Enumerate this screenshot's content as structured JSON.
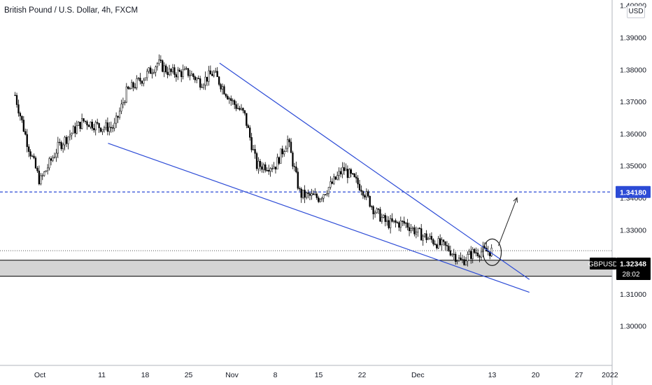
{
  "header": {
    "title": "British Pound / U.S. Dollar, 4h, FXCM"
  },
  "currency_label": "USD",
  "colors": {
    "pattern_lines": "#2c4bd6",
    "level_line": "#2c4bd6",
    "zone_fill": "#d4d4d4",
    "candle_up": "#ffffff",
    "candle_down": "#000000",
    "candle_wick": "#000000",
    "price_tag_bg": "#000000",
    "level_tag_bg": "#2c4bd6"
  },
  "chart_data": {
    "type": "candlestick",
    "symbol": "GBPUSD",
    "timeframe": "4h",
    "y_axis_ticks": [
      "1.40000",
      "1.39000",
      "1.38000",
      "1.37000",
      "1.36000",
      "1.35000",
      "1.34000",
      "1.33000",
      "1.31000",
      "1.30000"
    ],
    "x_axis_ticks": [
      "Oct",
      "11",
      "18",
      "25",
      "Nov",
      "8",
      "15",
      "22",
      "Dec",
      "13",
      "20",
      "27",
      "2022"
    ],
    "ylim": [
      1.2925,
      1.4006
    ],
    "path_points": [
      {
        "date": "2021-09-27",
        "price": 1.372
      },
      {
        "date": "2021-09-29",
        "price": 1.357
      },
      {
        "date": "2021-10-01",
        "price": 1.345
      },
      {
        "date": "2021-10-04",
        "price": 1.356
      },
      {
        "date": "2021-10-06",
        "price": 1.36
      },
      {
        "date": "2021-10-08",
        "price": 1.364
      },
      {
        "date": "2021-10-11",
        "price": 1.362
      },
      {
        "date": "2021-10-13",
        "price": 1.362
      },
      {
        "date": "2021-10-15",
        "price": 1.373
      },
      {
        "date": "2021-10-18",
        "price": 1.378
      },
      {
        "date": "2021-10-20",
        "price": 1.382
      },
      {
        "date": "2021-10-22",
        "price": 1.379
      },
      {
        "date": "2021-10-25",
        "price": 1.379
      },
      {
        "date": "2021-10-27",
        "price": 1.376
      },
      {
        "date": "2021-10-29",
        "price": 1.379
      },
      {
        "date": "2021-11-01",
        "price": 1.37
      },
      {
        "date": "2021-11-03",
        "price": 1.366
      },
      {
        "date": "2021-11-05",
        "price": 1.35
      },
      {
        "date": "2021-11-08",
        "price": 1.35
      },
      {
        "date": "2021-11-10",
        "price": 1.358
      },
      {
        "date": "2021-11-12",
        "price": 1.341
      },
      {
        "date": "2021-11-15",
        "price": 1.34
      },
      {
        "date": "2021-11-17",
        "price": 1.344
      },
      {
        "date": "2021-11-19",
        "price": 1.349
      },
      {
        "date": "2021-11-22",
        "price": 1.343
      },
      {
        "date": "2021-11-24",
        "price": 1.336
      },
      {
        "date": "2021-11-26",
        "price": 1.332
      },
      {
        "date": "2021-11-29",
        "price": 1.332
      },
      {
        "date": "2021-12-01",
        "price": 1.329
      },
      {
        "date": "2021-12-03",
        "price": 1.327
      },
      {
        "date": "2021-12-06",
        "price": 1.324
      },
      {
        "date": "2021-12-08",
        "price": 1.32
      },
      {
        "date": "2021-12-10",
        "price": 1.323
      },
      {
        "date": "2021-12-13",
        "price": 1.3234
      }
    ],
    "current_price": {
      "symbol": "GBPUSD",
      "value": "1.32348",
      "countdown": "28:02"
    },
    "horizontal_level": {
      "value": "1.34180",
      "style": "dashed"
    },
    "support_zone": {
      "from": 1.3155,
      "to": 1.3205
    },
    "falling_wedge": {
      "upper_line": [
        {
          "date": "2021-10-30",
          "price": 1.382
        },
        {
          "date": "2021-12-19",
          "price": 1.3145
        }
      ],
      "lower_line": [
        {
          "date": "2021-10-12",
          "price": 1.357
        },
        {
          "date": "2021-12-19",
          "price": 1.3105
        }
      ]
    },
    "breakout_arrow": {
      "from": {
        "date": "2021-12-14",
        "price": 1.325
      },
      "to": {
        "date": "2021-12-17",
        "price": 1.34
      }
    },
    "highlight_circle": {
      "date": "2021-12-13",
      "price": 1.323
    }
  }
}
